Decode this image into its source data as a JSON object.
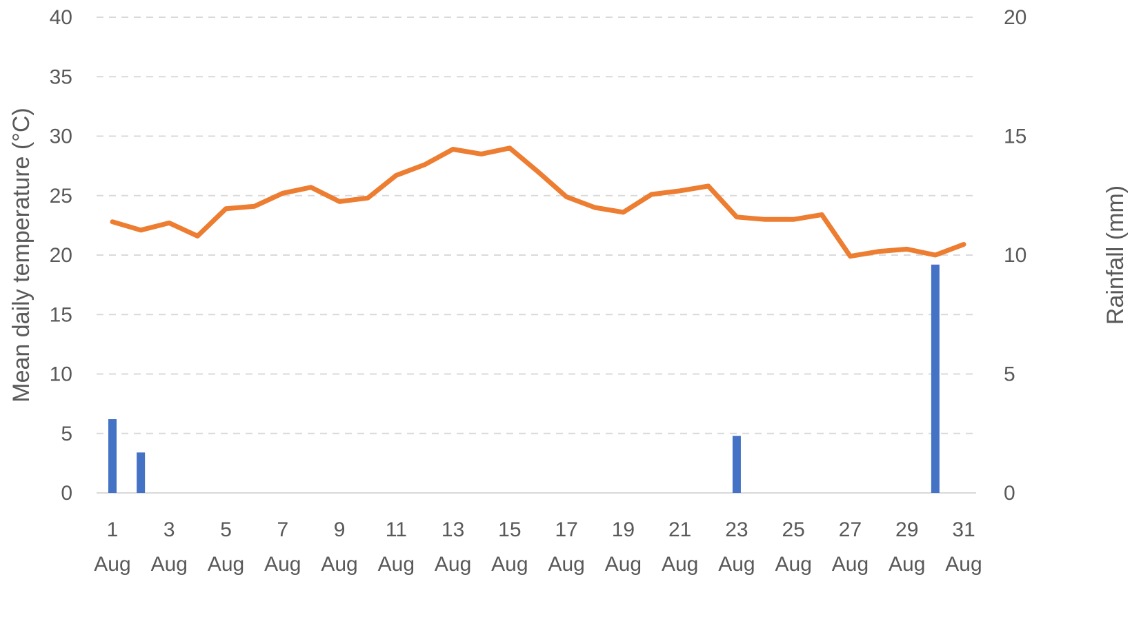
{
  "chart_data": {
    "type": "bar+line",
    "title": "",
    "x": [
      1,
      2,
      3,
      4,
      5,
      6,
      7,
      8,
      9,
      10,
      11,
      12,
      13,
      14,
      15,
      16,
      17,
      18,
      19,
      20,
      21,
      22,
      23,
      24,
      25,
      26,
      27,
      28,
      29,
      30,
      31
    ],
    "x_tick_labels": [
      {
        "day": 1,
        "line1": "1",
        "line2": "Aug"
      },
      {
        "day": 3,
        "line1": "3",
        "line2": "Aug"
      },
      {
        "day": 5,
        "line1": "5",
        "line2": "Aug"
      },
      {
        "day": 7,
        "line1": "7",
        "line2": "Aug"
      },
      {
        "day": 9,
        "line1": "9",
        "line2": "Aug"
      },
      {
        "day": 11,
        "line1": "11",
        "line2": "Aug"
      },
      {
        "day": 13,
        "line1": "13",
        "line2": "Aug"
      },
      {
        "day": 15,
        "line1": "15",
        "line2": "Aug"
      },
      {
        "day": 17,
        "line1": "17",
        "line2": "Aug"
      },
      {
        "day": 19,
        "line1": "19",
        "line2": "Aug"
      },
      {
        "day": 21,
        "line1": "21",
        "line2": "Aug"
      },
      {
        "day": 23,
        "line1": "23",
        "line2": "Aug"
      },
      {
        "day": 25,
        "line1": "25",
        "line2": "Aug"
      },
      {
        "day": 27,
        "line1": "27",
        "line2": "Aug"
      },
      {
        "day": 29,
        "line1": "29",
        "line2": "Aug"
      },
      {
        "day": 31,
        "line1": "31",
        "line2": "Aug"
      }
    ],
    "ylabel_left": "Mean daily temperature (°C)",
    "ylabel_right": "Rainfall (mm)",
    "ylim_left": [
      0,
      40
    ],
    "yticks_left": [
      0,
      5,
      10,
      15,
      20,
      25,
      30,
      35,
      40
    ],
    "ylim_right": [
      0,
      20
    ],
    "yticks_right": [
      0,
      5,
      10,
      15,
      20
    ],
    "grid": true,
    "series": [
      {
        "type": "line",
        "axis": "left",
        "color": "#ED7D31",
        "values": [
          22.8,
          22.1,
          22.7,
          21.6,
          23.9,
          24.1,
          25.2,
          25.7,
          24.5,
          24.8,
          26.7,
          27.6,
          28.9,
          28.5,
          29.0,
          27.0,
          24.9,
          24.0,
          23.6,
          25.1,
          25.4,
          25.8,
          23.2,
          23.0,
          23.0,
          23.4,
          19.9,
          20.3,
          20.5,
          20.0,
          20.9
        ]
      },
      {
        "type": "bar",
        "axis": "right",
        "color": "#4472C4",
        "values": [
          3.1,
          1.7,
          0,
          0,
          0,
          0,
          0,
          0,
          0,
          0,
          0,
          0,
          0,
          0,
          0,
          0,
          0,
          0,
          0,
          0,
          0,
          0,
          2.4,
          0,
          0,
          0,
          0,
          0,
          0,
          9.6,
          0
        ]
      }
    ]
  }
}
